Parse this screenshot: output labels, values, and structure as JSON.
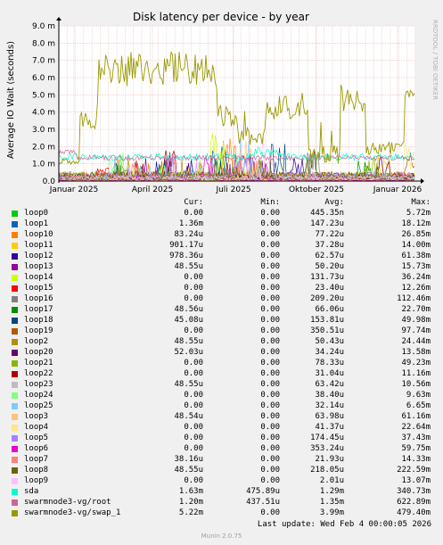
{
  "chart_data": {
    "type": "line",
    "title": "Disk latency per device - by year",
    "ylabel": "Average IO Wait (seconds)",
    "side_label": "RRDTOOL / TOBI OETIKER",
    "y_ticks": [
      "0.0",
      "1.0 m",
      "2.0 m",
      "3.0 m",
      "4.0 m",
      "5.0 m",
      "6.0 m",
      "7.0 m",
      "8.0 m",
      "9.0 m"
    ],
    "ylim": [
      0,
      0.009
    ],
    "x_ticks": [
      "Januar 2025",
      "April 2025",
      "Juli 2025",
      "Oktober 2025",
      "Januar 2026"
    ],
    "grid": true,
    "columns": [
      "Cur:",
      "Min:",
      "Avg:",
      "Max:"
    ],
    "series": [
      {
        "name": "loop0",
        "color": "#00cc00",
        "cur": "0.00",
        "min": "0.00",
        "avg": "445.35n",
        "max": "5.72m"
      },
      {
        "name": "loop1",
        "color": "#0066b3",
        "cur": "1.36m",
        "min": "0.00",
        "avg": "147.23u",
        "max": "18.12m"
      },
      {
        "name": "loop10",
        "color": "#ff8000",
        "cur": "83.24u",
        "min": "0.00",
        "avg": "77.22u",
        "max": "26.85m"
      },
      {
        "name": "loop11",
        "color": "#ffcc00",
        "cur": "901.17u",
        "min": "0.00",
        "avg": "37.28u",
        "max": "14.00m"
      },
      {
        "name": "loop12",
        "color": "#330099",
        "cur": "978.36u",
        "min": "0.00",
        "avg": "62.57u",
        "max": "61.38m"
      },
      {
        "name": "loop13",
        "color": "#990099",
        "cur": "48.55u",
        "min": "0.00",
        "avg": "50.20u",
        "max": "15.73m"
      },
      {
        "name": "loop14",
        "color": "#ccff00",
        "cur": "0.00",
        "min": "0.00",
        "avg": "131.73u",
        "max": "36.24m"
      },
      {
        "name": "loop15",
        "color": "#ff0000",
        "cur": "0.00",
        "min": "0.00",
        "avg": "23.40u",
        "max": "12.26m"
      },
      {
        "name": "loop16",
        "color": "#808080",
        "cur": "0.00",
        "min": "0.00",
        "avg": "209.20u",
        "max": "112.46m"
      },
      {
        "name": "loop17",
        "color": "#008f00",
        "cur": "48.56u",
        "min": "0.00",
        "avg": "66.06u",
        "max": "22.70m"
      },
      {
        "name": "loop18",
        "color": "#00487d",
        "cur": "45.08u",
        "min": "0.00",
        "avg": "153.81u",
        "max": "49.98m"
      },
      {
        "name": "loop19",
        "color": "#b35a00",
        "cur": "0.00",
        "min": "0.00",
        "avg": "350.51u",
        "max": "97.74m"
      },
      {
        "name": "loop2",
        "color": "#b38f00",
        "cur": "48.55u",
        "min": "0.00",
        "avg": "50.43u",
        "max": "24.44m"
      },
      {
        "name": "loop20",
        "color": "#6b006b",
        "cur": "52.03u",
        "min": "0.00",
        "avg": "34.24u",
        "max": "13.58m"
      },
      {
        "name": "loop21",
        "color": "#8fb300",
        "cur": "0.00",
        "min": "0.00",
        "avg": "78.33u",
        "max": "49.23m"
      },
      {
        "name": "loop22",
        "color": "#b30000",
        "cur": "0.00",
        "min": "0.00",
        "avg": "31.04u",
        "max": "11.16m"
      },
      {
        "name": "loop23",
        "color": "#bebebe",
        "cur": "48.55u",
        "min": "0.00",
        "avg": "63.42u",
        "max": "10.56m"
      },
      {
        "name": "loop24",
        "color": "#80ff80",
        "cur": "0.00",
        "min": "0.00",
        "avg": "38.40u",
        "max": "9.63m"
      },
      {
        "name": "loop25",
        "color": "#80c9ff",
        "cur": "0.00",
        "min": "0.00",
        "avg": "32.14u",
        "max": "6.65m"
      },
      {
        "name": "loop3",
        "color": "#ffc080",
        "cur": "48.54u",
        "min": "0.00",
        "avg": "63.98u",
        "max": "61.16m"
      },
      {
        "name": "loop4",
        "color": "#ffe680",
        "cur": "0.00",
        "min": "0.00",
        "avg": "41.37u",
        "max": "22.64m"
      },
      {
        "name": "loop5",
        "color": "#aa80ff",
        "cur": "0.00",
        "min": "0.00",
        "avg": "174.45u",
        "max": "37.43m"
      },
      {
        "name": "loop6",
        "color": "#ee00cc",
        "cur": "0.00",
        "min": "0.00",
        "avg": "353.24u",
        "max": "59.75m"
      },
      {
        "name": "loop7",
        "color": "#ff8080",
        "cur": "38.16u",
        "min": "0.00",
        "avg": "21.93u",
        "max": "14.33m"
      },
      {
        "name": "loop8",
        "color": "#666600",
        "cur": "48.55u",
        "min": "0.00",
        "avg": "218.05u",
        "max": "222.59m"
      },
      {
        "name": "loop9",
        "color": "#ffbfff",
        "cur": "0.00",
        "min": "0.00",
        "avg": "2.01u",
        "max": "13.07m"
      },
      {
        "name": "sda",
        "color": "#00ffcc",
        "cur": "1.63m",
        "min": "475.89u",
        "avg": "1.29m",
        "max": "340.73m"
      },
      {
        "name": "swarmnode3-vg/root",
        "color": "#cc6699",
        "cur": "1.20m",
        "min": "437.51u",
        "avg": "1.35m",
        "max": "622.89m"
      },
      {
        "name": "swarmnode3-vg/swap_1",
        "color": "#999900",
        "cur": "5.22m",
        "min": "0.00",
        "avg": "3.99m",
        "max": "479.40m"
      }
    ]
  },
  "footer": {
    "last_update": "Last update: Wed Feb  4 00:00:05 2026",
    "version": "Munin 2.0.75"
  }
}
